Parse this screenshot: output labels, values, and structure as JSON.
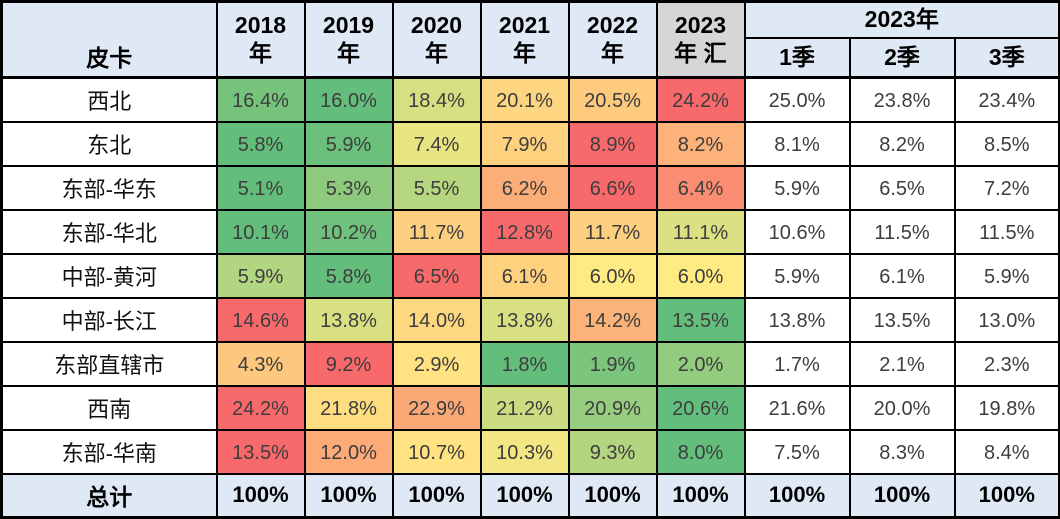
{
  "table": {
    "corner_label": "皮卡",
    "year_headers": [
      "2018\n年",
      "2019\n年",
      "2020\n年",
      "2021\n年",
      "2022\n年",
      "2023\n年 汇"
    ],
    "quarter_group": "2023年",
    "quarter_headers": [
      "1季",
      "2季",
      "3季"
    ],
    "rows": [
      {
        "label": "西北",
        "cells": [
          "16.4%",
          "16.0%",
          "18.4%",
          "20.1%",
          "20.5%",
          "24.2%",
          "25.0%",
          "23.8%",
          "23.4%"
        ]
      },
      {
        "label": "东北",
        "cells": [
          "5.8%",
          "5.9%",
          "7.4%",
          "7.9%",
          "8.9%",
          "8.2%",
          "8.1%",
          "8.2%",
          "8.5%"
        ]
      },
      {
        "label": "东部-华东",
        "cells": [
          "5.1%",
          "5.3%",
          "5.5%",
          "6.2%",
          "6.6%",
          "6.4%",
          "5.9%",
          "6.5%",
          "7.2%"
        ]
      },
      {
        "label": "东部-华北",
        "cells": [
          "10.1%",
          "10.2%",
          "11.7%",
          "12.8%",
          "11.7%",
          "11.1%",
          "10.6%",
          "11.5%",
          "11.5%"
        ]
      },
      {
        "label": "中部-黄河",
        "cells": [
          "5.9%",
          "5.8%",
          "6.5%",
          "6.1%",
          "6.0%",
          "6.0%",
          "5.9%",
          "6.1%",
          "5.9%"
        ]
      },
      {
        "label": "中部-长江",
        "cells": [
          "14.6%",
          "13.8%",
          "14.0%",
          "13.8%",
          "14.2%",
          "13.5%",
          "13.8%",
          "13.5%",
          "13.0%"
        ]
      },
      {
        "label": "东部直辖市",
        "cells": [
          "4.3%",
          "9.2%",
          "2.9%",
          "1.8%",
          "1.9%",
          "2.0%",
          "1.7%",
          "2.1%",
          "2.3%"
        ]
      },
      {
        "label": "西南",
        "cells": [
          "24.2%",
          "21.8%",
          "22.9%",
          "21.2%",
          "20.9%",
          "20.6%",
          "21.6%",
          "20.0%",
          "19.8%"
        ]
      },
      {
        "label": "东部-华南",
        "cells": [
          "13.5%",
          "12.0%",
          "10.7%",
          "10.3%",
          "9.3%",
          "8.0%",
          "7.5%",
          "8.3%",
          "8.4%"
        ]
      }
    ],
    "total": {
      "label": "总计",
      "cells": [
        "100%",
        "100%",
        "100%",
        "100%",
        "100%",
        "100%",
        "100%",
        "100%",
        "100%"
      ]
    }
  },
  "colors": {
    "header_bg": "#DEE9F5",
    "header_2023_total_bg": "#D6D6D6",
    "total_row_bg": "#DEE9F5",
    "heat_low_green": "#63BE7B",
    "heat_mid_yellow": "#FFEB84",
    "heat_high_red": "#F8696B",
    "border": "#000000"
  },
  "chart_data": {
    "type": "table",
    "unit": "percent share",
    "columns": [
      "皮卡",
      "2018年",
      "2019年",
      "2020年",
      "2021年",
      "2022年",
      "2023年汇",
      "2023年1季",
      "2023年2季",
      "2023年3季"
    ],
    "rows": [
      {
        "label": "西北",
        "values": [
          16.4,
          16.0,
          18.4,
          20.1,
          20.5,
          24.2,
          25.0,
          23.8,
          23.4
        ]
      },
      {
        "label": "东北",
        "values": [
          5.8,
          5.9,
          7.4,
          7.9,
          8.9,
          8.2,
          8.1,
          8.2,
          8.5
        ]
      },
      {
        "label": "东部-华东",
        "values": [
          5.1,
          5.3,
          5.5,
          6.2,
          6.6,
          6.4,
          5.9,
          6.5,
          7.2
        ]
      },
      {
        "label": "东部-华北",
        "values": [
          10.1,
          10.2,
          11.7,
          12.8,
          11.7,
          11.1,
          10.6,
          11.5,
          11.5
        ]
      },
      {
        "label": "中部-黄河",
        "values": [
          5.9,
          5.8,
          6.5,
          6.1,
          6.0,
          6.0,
          5.9,
          6.1,
          5.9
        ]
      },
      {
        "label": "中部-长江",
        "values": [
          14.6,
          13.8,
          14.0,
          13.8,
          14.2,
          13.5,
          13.8,
          13.5,
          13.0
        ]
      },
      {
        "label": "东部直辖市",
        "values": [
          4.3,
          9.2,
          2.9,
          1.8,
          1.9,
          2.0,
          1.7,
          2.1,
          2.3
        ]
      },
      {
        "label": "西南",
        "values": [
          24.2,
          21.8,
          22.9,
          21.2,
          20.9,
          20.6,
          21.6,
          20.0,
          19.8
        ]
      },
      {
        "label": "东部-华南",
        "values": [
          13.5,
          12.0,
          10.7,
          10.3,
          9.3,
          8.0,
          7.5,
          8.3,
          8.4
        ]
      }
    ],
    "total_row": {
      "label": "总计",
      "values": [
        "100%",
        "100%",
        "100%",
        "100%",
        "100%",
        "100%",
        "100%",
        "100%",
        "100%"
      ]
    },
    "heatmap": {
      "applies_to": "year columns 2018-2023汇, scaled per row (min/median/max)",
      "low": "#63BE7B",
      "mid": "#FFEB84",
      "high": "#F8696B",
      "quarter_columns_background": "#FFFFFF"
    }
  }
}
